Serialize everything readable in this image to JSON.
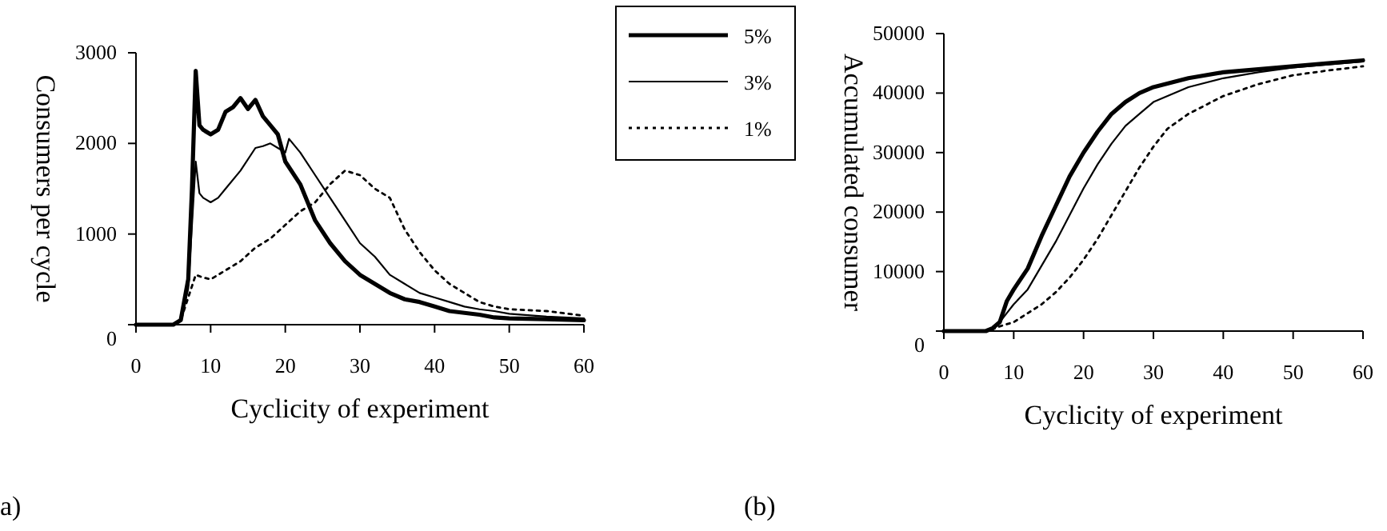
{
  "chart_data": [
    {
      "type": "line",
      "xlabel": "Cyclicity of experiment",
      "ylabel": "Consumers per cycle",
      "xlim": [
        0,
        60
      ],
      "xticks": [
        0,
        10,
        20,
        30,
        40,
        50,
        60
      ],
      "ylim": [
        0,
        3000
      ],
      "yticks": [
        0,
        1000,
        2000,
        3000
      ],
      "grid": false,
      "legend": "right",
      "annotations": [
        "a)"
      ],
      "series": [
        {
          "name": "5%",
          "color": "#000000",
          "line_style": "solid",
          "x": [
            0,
            5,
            6,
            7,
            7.5,
            8,
            8.5,
            9,
            10,
            11,
            12,
            13,
            14,
            15,
            16,
            17,
            18,
            19,
            20,
            22,
            24,
            26,
            28,
            30,
            32,
            34,
            36,
            38,
            40,
            42,
            44,
            46,
            48,
            50,
            55,
            60
          ],
          "values": [
            0,
            0,
            50,
            500,
            1500,
            2800,
            2200,
            2150,
            2100,
            2150,
            2350,
            2400,
            2500,
            2380,
            2480,
            2300,
            2200,
            2100,
            1800,
            1550,
            1150,
            900,
            700,
            550,
            450,
            350,
            280,
            250,
            200,
            150,
            130,
            110,
            80,
            70,
            60,
            50
          ]
        },
        {
          "name": "3%",
          "color": "#000000",
          "line_style": "solid",
          "x": [
            0,
            5,
            6,
            7,
            8,
            8.5,
            9,
            10,
            11,
            12,
            14,
            16,
            17,
            18,
            19,
            20,
            20.5,
            22,
            24,
            26,
            28,
            30,
            32,
            34,
            36,
            38,
            40,
            42,
            44,
            46,
            48,
            50,
            55,
            60
          ],
          "values": [
            0,
            0,
            50,
            400,
            1800,
            1450,
            1400,
            1350,
            1400,
            1500,
            1700,
            1950,
            1970,
            2000,
            1950,
            1900,
            2050,
            1900,
            1650,
            1400,
            1150,
            900,
            750,
            550,
            450,
            350,
            300,
            250,
            200,
            170,
            150,
            120,
            90,
            70
          ]
        },
        {
          "name": "1%",
          "color": "#000000",
          "line_style": "dotted",
          "x": [
            0,
            5,
            6,
            7,
            8,
            9,
            10,
            12,
            14,
            16,
            18,
            20,
            22,
            24,
            26,
            28,
            30,
            32,
            34,
            36,
            38,
            40,
            42,
            44,
            46,
            48,
            50,
            55,
            60
          ],
          "values": [
            0,
            0,
            50,
            300,
            550,
            520,
            500,
            600,
            700,
            850,
            950,
            1100,
            1250,
            1350,
            1550,
            1700,
            1650,
            1500,
            1400,
            1050,
            800,
            600,
            450,
            350,
            250,
            200,
            170,
            150,
            100
          ]
        }
      ]
    },
    {
      "type": "line",
      "xlabel": "Cyclicity of experiment",
      "ylabel": "Accumulated consumer",
      "xlim": [
        0,
        60
      ],
      "xticks": [
        0,
        10,
        20,
        30,
        40,
        50,
        60
      ],
      "ylim": [
        0,
        50000
      ],
      "yticks": [
        0,
        10000,
        20000,
        30000,
        40000,
        50000
      ],
      "grid": false,
      "annotations": [
        "(b)"
      ],
      "series": [
        {
          "color": "#000000",
          "line_style": "solid",
          "x": [
            0,
            6,
            7,
            8,
            9,
            10,
            12,
            14,
            16,
            18,
            20,
            22,
            24,
            26,
            28,
            30,
            35,
            40,
            45,
            50,
            55,
            60
          ],
          "values": [
            0,
            0,
            500,
            1500,
            5000,
            7000,
            10500,
            16000,
            21000,
            26000,
            30000,
            33500,
            36500,
            38500,
            40000,
            41000,
            42500,
            43500,
            44000,
            44500,
            45000,
            45500
          ]
        },
        {
          "color": "#000000",
          "line_style": "solid",
          "x": [
            0,
            6,
            7,
            8,
            9,
            10,
            12,
            14,
            16,
            18,
            20,
            22,
            24,
            26,
            28,
            30,
            35,
            40,
            45,
            50,
            55,
            60
          ],
          "values": [
            0,
            0,
            500,
            1500,
            3000,
            4500,
            7000,
            11000,
            15000,
            19500,
            24000,
            28000,
            31500,
            34500,
            36500,
            38500,
            41000,
            42500,
            43500,
            44300,
            44800,
            45300
          ]
        },
        {
          "color": "#000000",
          "line_style": "dotted",
          "x": [
            0,
            6,
            7,
            8,
            10,
            12,
            14,
            16,
            18,
            20,
            22,
            24,
            26,
            28,
            30,
            32,
            35,
            40,
            45,
            50,
            55,
            60
          ],
          "values": [
            0,
            0,
            300,
            800,
            1500,
            3000,
            4500,
            6500,
            9000,
            12000,
            15500,
            19500,
            23500,
            27500,
            31000,
            34000,
            36500,
            39500,
            41500,
            43000,
            43800,
            44500
          ]
        }
      ]
    }
  ]
}
